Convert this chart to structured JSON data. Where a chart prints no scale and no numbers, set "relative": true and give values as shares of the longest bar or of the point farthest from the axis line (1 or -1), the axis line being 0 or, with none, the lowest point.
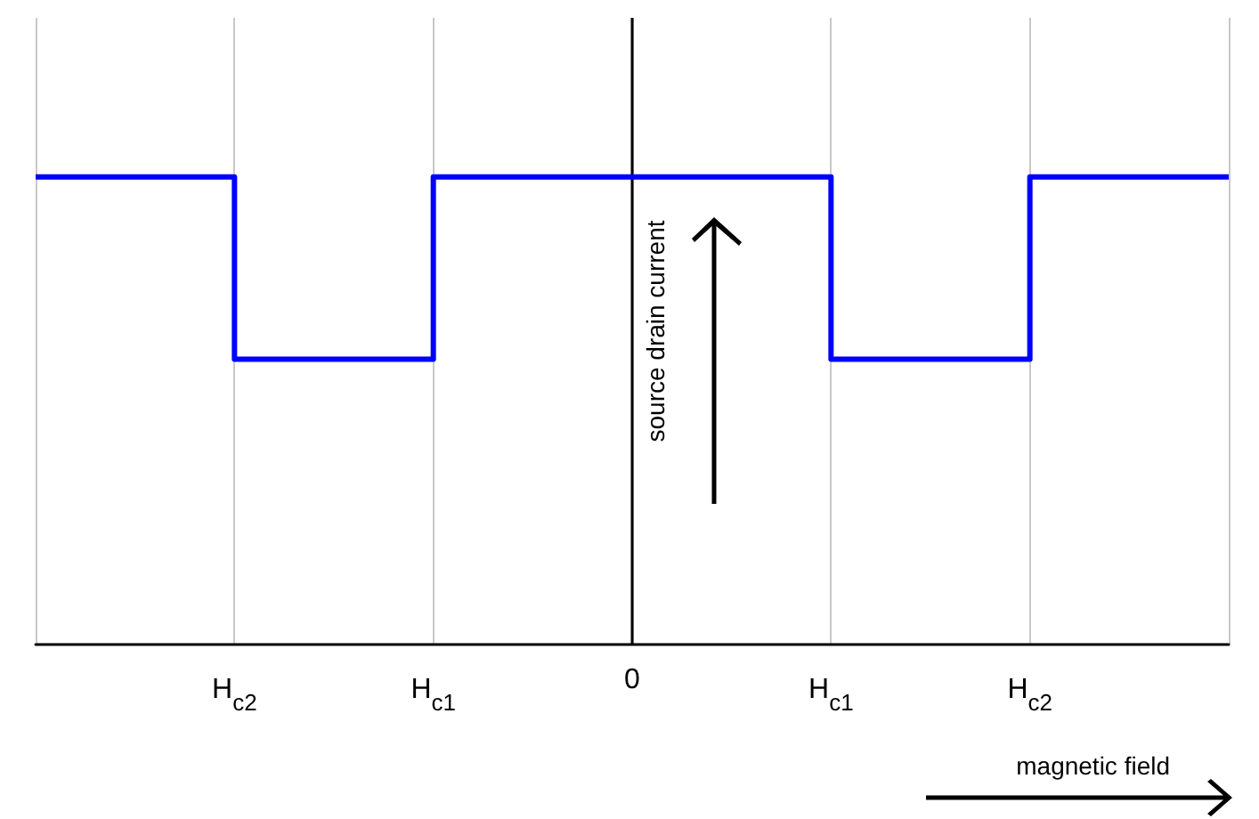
{
  "chart_data": {
    "type": "step",
    "relative": true,
    "xlabel": "magnetic field",
    "ylabel": "source drain current",
    "categories": [
      null,
      "H$_{c2}$",
      "H$_{c1}$",
      "0",
      "H$_{c1}$",
      "H$_{c2}$",
      null
    ],
    "series": [
      {
        "color": "#0000ff",
        "values": [
          1,
          0.61,
          1,
          1,
          0.61,
          1,
          1
        ]
      }
    ],
    "ref_lines": [
      {
        "axis": "x",
        "value": "0",
        "color": "#000000"
      }
    ],
    "grid": "x",
    "marker": "none",
    "line_style": "solid"
  }
}
